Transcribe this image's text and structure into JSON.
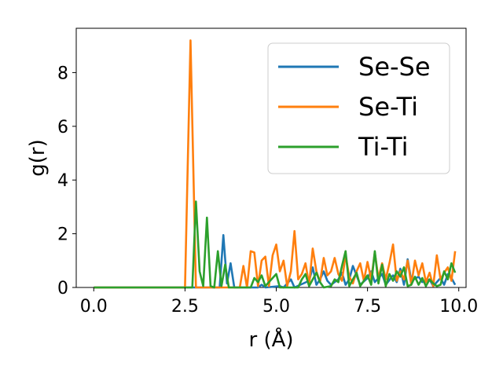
{
  "chart_data": {
    "type": "line",
    "xlabel": "r (Å)",
    "ylabel": "g(r)",
    "xlim": [
      -0.48,
      10.2
    ],
    "ylim": [
      0,
      9.65
    ],
    "xticks": [
      "0.0",
      "2.5",
      "5.0",
      "7.5",
      "10.0"
    ],
    "yticks": [
      "0",
      "2",
      "4",
      "6",
      "8"
    ],
    "grid": false,
    "legend_position": "top-right",
    "series": [
      {
        "name": "Se-Se",
        "color": "#1f77b4",
        "points": [
          [
            0,
            0
          ],
          [
            2.5,
            0
          ],
          [
            3.45,
            0
          ],
          [
            3.55,
            1.95
          ],
          [
            3.65,
            0.15
          ],
          [
            3.75,
            0.9
          ],
          [
            3.85,
            0
          ],
          [
            4.5,
            0
          ],
          [
            4.6,
            0.1
          ],
          [
            4.7,
            0
          ],
          [
            5.1,
            0.05
          ],
          [
            5.2,
            0
          ],
          [
            5.4,
            0.3
          ],
          [
            5.5,
            0
          ],
          [
            5.9,
            0.25
          ],
          [
            6.0,
            0.75
          ],
          [
            6.1,
            0.1
          ],
          [
            6.2,
            0.3
          ],
          [
            6.3,
            0.6
          ],
          [
            6.4,
            0.25
          ],
          [
            6.5,
            0.1
          ],
          [
            6.7,
            0.3
          ],
          [
            6.8,
            0.55
          ],
          [
            6.9,
            0.1
          ],
          [
            7.0,
            0.3
          ],
          [
            7.1,
            0.8
          ],
          [
            7.2,
            0.45
          ],
          [
            7.3,
            0.1
          ],
          [
            7.5,
            0.35
          ],
          [
            7.6,
            0.6
          ],
          [
            7.7,
            0.2
          ],
          [
            7.9,
            0.5
          ],
          [
            8.0,
            0.1
          ],
          [
            8.2,
            0.45
          ],
          [
            8.3,
            0.2
          ],
          [
            8.4,
            0.7
          ],
          [
            8.5,
            0.1
          ],
          [
            8.6,
            1.05
          ],
          [
            8.7,
            0.25
          ],
          [
            8.9,
            0.4
          ],
          [
            9.0,
            0.2
          ],
          [
            9.2,
            0.3
          ],
          [
            9.3,
            0.05
          ],
          [
            9.5,
            0.35
          ],
          [
            9.6,
            0.1
          ],
          [
            9.7,
            0.5
          ],
          [
            9.8,
            0.35
          ],
          [
            9.9,
            0.1
          ]
        ]
      },
      {
        "name": "Se-Ti",
        "color": "#ff7f0e",
        "points": [
          [
            0,
            0
          ],
          [
            2.5,
            0
          ],
          [
            2.65,
            9.2
          ],
          [
            2.8,
            0
          ],
          [
            4.0,
            0
          ],
          [
            4.1,
            0.8
          ],
          [
            4.2,
            0
          ],
          [
            4.3,
            1.35
          ],
          [
            4.4,
            1.3
          ],
          [
            4.5,
            0.05
          ],
          [
            4.6,
            1.0
          ],
          [
            4.7,
            1.15
          ],
          [
            4.8,
            0.05
          ],
          [
            4.9,
            1.2
          ],
          [
            5.0,
            1.6
          ],
          [
            5.1,
            0.6
          ],
          [
            5.2,
            1.0
          ],
          [
            5.3,
            0.05
          ],
          [
            5.4,
            0.6
          ],
          [
            5.5,
            2.1
          ],
          [
            5.6,
            0.3
          ],
          [
            5.7,
            0.5
          ],
          [
            5.8,
            0.9
          ],
          [
            5.9,
            0.1
          ],
          [
            6.0,
            1.45
          ],
          [
            6.1,
            0.6
          ],
          [
            6.2,
            0.2
          ],
          [
            6.3,
            1.1
          ],
          [
            6.4,
            0.45
          ],
          [
            6.5,
            0.6
          ],
          [
            6.6,
            1.1
          ],
          [
            6.7,
            0.5
          ],
          [
            6.8,
            0.25
          ],
          [
            6.9,
            1.2
          ],
          [
            7.0,
            0.4
          ],
          [
            7.1,
            0.15
          ],
          [
            7.2,
            0.6
          ],
          [
            7.3,
            0.9
          ],
          [
            7.4,
            0.25
          ],
          [
            7.5,
            0.95
          ],
          [
            7.6,
            0.3
          ],
          [
            7.7,
            1.3
          ],
          [
            7.8,
            0.35
          ],
          [
            7.9,
            0.9
          ],
          [
            8.0,
            0.3
          ],
          [
            8.1,
            0.9
          ],
          [
            8.2,
            1.6
          ],
          [
            8.3,
            0.25
          ],
          [
            8.4,
            0.6
          ],
          [
            8.5,
            0.3
          ],
          [
            8.6,
            1.0
          ],
          [
            8.7,
            0.1
          ],
          [
            8.8,
            1.0
          ],
          [
            8.9,
            0.45
          ],
          [
            9.0,
            0.9
          ],
          [
            9.1,
            0.2
          ],
          [
            9.2,
            0.55
          ],
          [
            9.3,
            0.05
          ],
          [
            9.4,
            1.2
          ],
          [
            9.5,
            0.3
          ],
          [
            9.6,
            0.55
          ],
          [
            9.7,
            0.75
          ],
          [
            9.8,
            0.25
          ],
          [
            9.9,
            1.35
          ]
        ]
      },
      {
        "name": "Ti-Ti",
        "color": "#2ca02c",
        "points": [
          [
            0,
            0
          ],
          [
            2.7,
            0
          ],
          [
            2.8,
            3.2
          ],
          [
            2.9,
            0.6
          ],
          [
            3.0,
            0.05
          ],
          [
            3.1,
            2.6
          ],
          [
            3.2,
            0.05
          ],
          [
            3.3,
            0
          ],
          [
            3.4,
            1.35
          ],
          [
            3.5,
            0.05
          ],
          [
            3.6,
            0.85
          ],
          [
            3.7,
            0
          ],
          [
            4.3,
            0
          ],
          [
            4.4,
            0.35
          ],
          [
            4.5,
            0.2
          ],
          [
            4.6,
            0.45
          ],
          [
            4.7,
            0.05
          ],
          [
            5.0,
            0.5
          ],
          [
            5.1,
            0
          ],
          [
            5.6,
            0
          ],
          [
            5.7,
            0.3
          ],
          [
            5.8,
            0.5
          ],
          [
            5.9,
            0.05
          ],
          [
            6.0,
            0.3
          ],
          [
            6.1,
            0.55
          ],
          [
            6.2,
            0.2
          ],
          [
            6.3,
            0
          ],
          [
            6.5,
            0.05
          ],
          [
            6.6,
            0.3
          ],
          [
            6.7,
            0.2
          ],
          [
            6.8,
            0.8
          ],
          [
            6.9,
            1.35
          ],
          [
            7.0,
            0.05
          ],
          [
            7.1,
            0.3
          ],
          [
            7.2,
            0.55
          ],
          [
            7.3,
            0.05
          ],
          [
            7.4,
            0.25
          ],
          [
            7.5,
            0.45
          ],
          [
            7.6,
            0.1
          ],
          [
            7.7,
            1.35
          ],
          [
            7.8,
            0.15
          ],
          [
            7.9,
            0.85
          ],
          [
            8.0,
            0.05
          ],
          [
            8.1,
            0.5
          ],
          [
            8.2,
            0.25
          ],
          [
            8.3,
            0.6
          ],
          [
            8.4,
            0.4
          ],
          [
            8.5,
            0.75
          ],
          [
            8.6,
            0.05
          ],
          [
            8.7,
            0.1
          ],
          [
            8.8,
            0.4
          ],
          [
            8.9,
            0.1
          ],
          [
            9.0,
            0.35
          ],
          [
            9.1,
            0.05
          ],
          [
            9.2,
            0.3
          ],
          [
            9.3,
            0.15
          ],
          [
            9.4,
            0.05
          ],
          [
            9.5,
            0.1
          ],
          [
            9.6,
            0.6
          ],
          [
            9.7,
            0.3
          ],
          [
            9.8,
            0.9
          ],
          [
            9.9,
            0.55
          ]
        ]
      }
    ]
  }
}
